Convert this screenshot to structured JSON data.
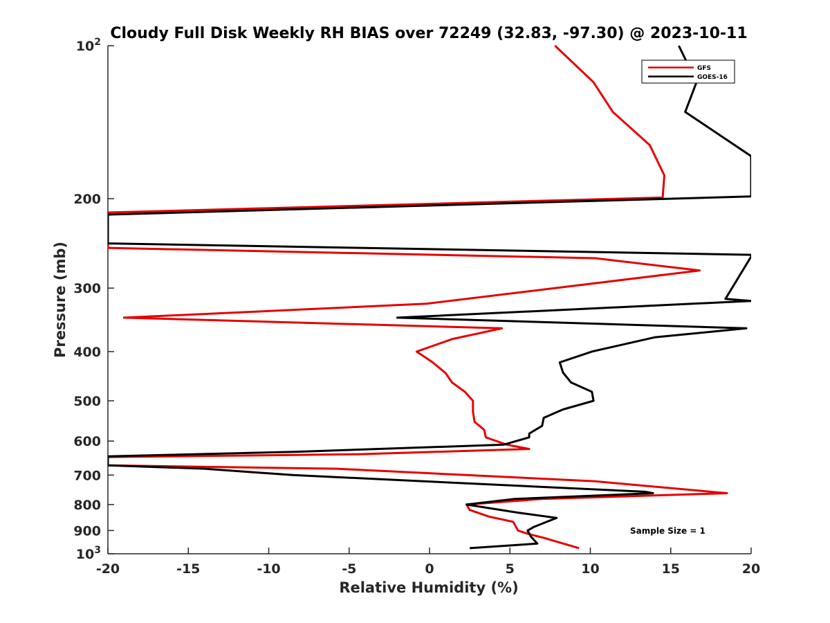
{
  "chart_data": {
    "type": "line",
    "title": "Cloudy Full Disk Weekly RH BIAS over 72249 (32.83, -97.30) @ 2023-10-11",
    "xlabel": "Relative Humidity (%)",
    "ylabel": "Pressure (mb)",
    "xlim": [
      -20,
      20
    ],
    "ylim": [
      100,
      1000
    ],
    "yscale": "log",
    "y_reversed": true,
    "grid": false,
    "legend_placement": "top-right",
    "annotation": "Sample Size = 1",
    "x_ticks": [
      "-20",
      "-15",
      "-10",
      "-5",
      "0",
      "5",
      "10",
      "15",
      "20"
    ],
    "y_ticks": [
      {
        "value": 100,
        "label": "10",
        "sup": "2"
      },
      {
        "value": 200,
        "label": "200",
        "sup": ""
      },
      {
        "value": 300,
        "label": "300",
        "sup": ""
      },
      {
        "value": 400,
        "label": "400",
        "sup": ""
      },
      {
        "value": 500,
        "label": "500",
        "sup": ""
      },
      {
        "value": 600,
        "label": "600",
        "sup": ""
      },
      {
        "value": 700,
        "label": "700",
        "sup": ""
      },
      {
        "value": 800,
        "label": "800",
        "sup": ""
      },
      {
        "value": 900,
        "label": "900",
        "sup": ""
      },
      {
        "value": 1000,
        "label": "10",
        "sup": "3"
      }
    ],
    "series": [
      {
        "name": "GFS",
        "color": "#e60000",
        "points": [
          [
            7.8,
            100
          ],
          [
            10.2,
            118
          ],
          [
            11.4,
            135
          ],
          [
            13.7,
            157
          ],
          [
            14.6,
            180
          ],
          [
            14.5,
            199
          ],
          [
            -20,
            213
          ],
          [
            -20,
            250
          ],
          [
            10.3,
            262
          ],
          [
            16.8,
            277
          ],
          [
            -0.2,
            322
          ],
          [
            -19.0,
            343
          ],
          [
            4.5,
            360
          ],
          [
            1.4,
            378
          ],
          [
            -0.8,
            400
          ],
          [
            0.2,
            420
          ],
          [
            1.0,
            441
          ],
          [
            1.4,
            460
          ],
          [
            2.2,
            480
          ],
          [
            2.7,
            500
          ],
          [
            2.7,
            525
          ],
          [
            2.8,
            550
          ],
          [
            3.4,
            570
          ],
          [
            3.5,
            590
          ],
          [
            4.8,
            610
          ],
          [
            6.2,
            622
          ],
          [
            -4.5,
            637
          ],
          [
            -20,
            645
          ],
          [
            -20,
            670
          ],
          [
            -5.8,
            680
          ],
          [
            10.3,
            720
          ],
          [
            18.5,
            760
          ],
          [
            7.0,
            780
          ],
          [
            2.3,
            800
          ],
          [
            2.5,
            820
          ],
          [
            3.7,
            845
          ],
          [
            5.2,
            865
          ],
          [
            5.5,
            900
          ],
          [
            6.2,
            915
          ],
          [
            7.1,
            930
          ],
          [
            9.3,
            975
          ]
        ]
      },
      {
        "name": "GOES-16",
        "color": "#000000",
        "points": [
          [
            15.5,
            100
          ],
          [
            16.6,
            118
          ],
          [
            15.9,
            135
          ],
          [
            20.0,
            165
          ],
          [
            20.0,
            198
          ],
          [
            -20,
            215
          ],
          [
            -20,
            245
          ],
          [
            20.0,
            258
          ],
          [
            20.0,
            260
          ],
          [
            18.4,
            315
          ],
          [
            20.0,
            318
          ],
          [
            -2.0,
            343
          ],
          [
            19.7,
            360
          ],
          [
            14.0,
            375
          ],
          [
            10.1,
            400
          ],
          [
            8.1,
            420
          ],
          [
            8.3,
            440
          ],
          [
            8.8,
            460
          ],
          [
            10.1,
            480
          ],
          [
            10.2,
            500
          ],
          [
            8.3,
            520
          ],
          [
            7.1,
            540
          ],
          [
            7.0,
            560
          ],
          [
            6.2,
            580
          ],
          [
            6.2,
            590
          ],
          [
            4.6,
            610
          ],
          [
            -8.4,
            630
          ],
          [
            -20,
            643
          ],
          [
            -20,
            670
          ],
          [
            -14.0,
            680
          ],
          [
            -8.5,
            700
          ],
          [
            13.4,
            755
          ],
          [
            13.9,
            760
          ],
          [
            5.3,
            780
          ],
          [
            2.3,
            800
          ],
          [
            5.5,
            830
          ],
          [
            7.9,
            850
          ],
          [
            6.5,
            885
          ],
          [
            6.1,
            900
          ],
          [
            6.3,
            925
          ],
          [
            6.7,
            955
          ],
          [
            2.5,
            975
          ]
        ]
      }
    ]
  }
}
